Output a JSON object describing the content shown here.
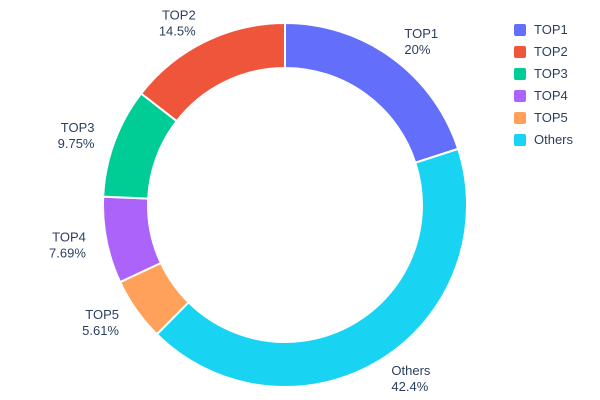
{
  "chart_data": {
    "type": "pie",
    "title": "",
    "donut": true,
    "hole": 0.75,
    "direction": "counterclockwise",
    "start_angle_deg": 0,
    "categories": [
      "TOP1",
      "TOP2",
      "TOP3",
      "TOP4",
      "TOP5",
      "Others"
    ],
    "values": [
      20,
      14.5,
      9.75,
      7.69,
      5.61,
      42.4
    ],
    "percent_labels": [
      "20%",
      "14.5%",
      "9.75%",
      "7.69%",
      "5.61%",
      "42.4%"
    ],
    "colors": [
      "#636EFA",
      "#EF553B",
      "#00CC96",
      "#AB63FA",
      "#FFA15A",
      "#19D3F3"
    ],
    "legend": {
      "position": "top-right",
      "entries": [
        "TOP1",
        "TOP2",
        "TOP3",
        "TOP4",
        "TOP5",
        "Others"
      ]
    }
  },
  "styles": {
    "label_color": "#2a3f5f",
    "slice_border_color": "#ffffff",
    "background": "#ffffff"
  }
}
